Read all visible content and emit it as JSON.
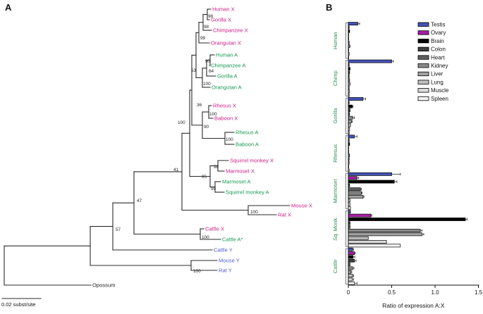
{
  "figure": {
    "panel_a_label": "A",
    "panel_b_label": "B"
  },
  "tree": {
    "scale_bar": {
      "label": "0.02 subst/site"
    },
    "colors": {
      "x": "#cf1d86",
      "a": "#169a50",
      "y": "#4d5ccc",
      "o": "#1a1a1a"
    },
    "root": {
      "x": 6,
      "c": [
        {
          "x": 128,
          "c": [
            {
              "x": 160,
              "bs": "57",
              "lx": 164,
              "ly": 328,
              "c": [
                {
                  "x": 190,
                  "bs": "47",
                  "lx": 194,
                  "ly": 287,
                  "c": [
                    {
                      "x": 258,
                      "bs": "41",
                      "lx": 246,
                      "ly": 243,
                      "c": [
                        {
                          "x": 269,
                          "bs": "100",
                          "lx": 252,
                          "ly": 176,
                          "c": [
                            {
                              "x": 272,
                              "bs": "36",
                              "lx": 279,
                              "ly": 151,
                              "c": [
                                {
                                  "x": 278,
                                  "bs": "53",
                                  "lx": 271,
                                  "ly": 102,
                                  "c": [
                                    {
                                      "x": 282,
                                      "bs": "99",
                                      "lx": 284,
                                      "ly": 56,
                                      "c": [
                                        {
                                          "x": 288,
                                          "bs": "98",
                                          "lx": 289,
                                          "ly": 40,
                                          "c": [
                                            {
                                              "x": 294,
                                              "bs": "98",
                                              "lx": 295,
                                              "ly": 25,
                                              "c": [
                                                {
                                                  "leaf": "Human X",
                                                  "cls": "x",
                                                  "y": 13,
                                                  "tx": 299
                                                },
                                                {
                                                  "leaf": "Gorilla X",
                                                  "cls": "x",
                                                  "y": 28,
                                                  "tx": 297
                                                }
                                              ]
                                            },
                                            {
                                              "leaf": "Chimpanzee X",
                                              "cls": "x",
                                              "y": 43,
                                              "tx": 300
                                            }
                                          ]
                                        },
                                        {
                                          "leaf": "Orangutan X",
                                          "cls": "x",
                                          "y": 61,
                                          "tx": 297
                                        }
                                      ]
                                    },
                                    {
                                      "x": 287,
                                      "bs": "100",
                                      "lx": 288,
                                      "ly": 121,
                                      "c": [
                                        {
                                          "x": 293,
                                          "bs": "64",
                                          "lx": 296,
                                          "ly": 103,
                                          "c": [
                                            {
                                              "x": 298,
                                              "bs": "90",
                                              "lx": 291,
                                              "ly": 89,
                                              "c": [
                                                {
                                                  "leaf": "Human A",
                                                  "cls": "a",
                                                  "y": 78,
                                                  "tx": 304
                                                },
                                                {
                                                  "leaf": "Chimpanzee A",
                                                  "cls": "a",
                                                  "y": 93,
                                                  "tx": 297
                                                }
                                              ]
                                            },
                                            {
                                              "leaf": "Gorilla A",
                                              "cls": "a",
                                              "y": 108,
                                              "tx": 306
                                            }
                                          ]
                                        },
                                        {
                                          "leaf": "Orangutan A",
                                          "cls": "a",
                                          "y": 124,
                                          "tx": 298
                                        }
                                      ]
                                    }
                                  ]
                                },
                                {
                                  "x": 287,
                                  "bs": "90",
                                  "lx": 289,
                                  "ly": 182,
                                  "c": [
                                    {
                                      "x": 296,
                                      "bs": "100",
                                      "lx": 297,
                                      "ly": 164,
                                      "c": [
                                        {
                                          "leaf": "Rhesus X",
                                          "cls": "x",
                                          "y": 150,
                                          "tx": 300
                                        },
                                        {
                                          "leaf": "Baboon X",
                                          "cls": "x",
                                          "y": 168,
                                          "tx": 302
                                        }
                                      ]
                                    },
                                    {
                                      "x": 319,
                                      "bs": "100",
                                      "lx": 320,
                                      "ly": 200,
                                      "c": [
                                        {
                                          "leaf": "Rhesus A",
                                          "cls": "a",
                                          "y": 188,
                                          "tx": 332
                                        },
                                        {
                                          "leaf": "Baboon A",
                                          "cls": "a",
                                          "y": 205,
                                          "tx": 332
                                        }
                                      ]
                                    }
                                  ]
                                }
                              ]
                            },
                            {
                              "x": 298,
                              "bs": "95",
                              "lx": 286,
                              "ly": 253,
                              "c": [
                                {
                                  "x": 309,
                                  "bs": "98",
                                  "lx": 303,
                                  "ly": 239,
                                  "c": [
                                    {
                                      "leaf": "Squirrel monkey X",
                                      "cls": "x",
                                      "y": 228,
                                      "tx": 324
                                    },
                                    {
                                      "leaf": "Marmoset X",
                                      "cls": "x",
                                      "y": 243,
                                      "tx": 318
                                    }
                                  ]
                                },
                                {
                                  "x": 305,
                                  "bs": "99",
                                  "lx": 299,
                                  "ly": 270,
                                  "c": [
                                    {
                                      "leaf": "Marmoset A",
                                      "cls": "a",
                                      "y": 258,
                                      "tx": 313
                                    },
                                    {
                                      "leaf": "Squirrel monkey A",
                                      "cls": "a",
                                      "y": 273,
                                      "tx": 318
                                    }
                                  ]
                                }
                              ]
                            }
                          ]
                        },
                        {
                          "x": 352,
                          "bs": "100",
                          "lx": 355,
                          "ly": 303,
                          "c": [
                            {
                              "leaf": "Mouse X",
                              "cls": "x",
                              "y": 292,
                              "tx": 411
                            },
                            {
                              "leaf": "Rat X",
                              "cls": "x",
                              "y": 305,
                              "tx": 392
                            }
                          ]
                        }
                      ]
                    },
                    {
                      "x": 284,
                      "bs": "100",
                      "lx": 286,
                      "ly": 339,
                      "c": [
                        {
                          "leaf": "Cattle X",
                          "cls": "x",
                          "y": 325,
                          "tx": 289
                        },
                        {
                          "leaf": "Cattle A*",
                          "cls": "a",
                          "y": 340,
                          "tx": 313
                        }
                      ]
                    }
                  ]
                },
                {
                  "leaf": "Cattle Y",
                  "cls": "y",
                  "y": 355,
                  "tx": 301
                }
              ]
            },
            {
              "x": 271,
              "bs": "100",
              "lx": 274,
              "ly": 387,
              "c": [
                {
                  "leaf": "Mouse Y",
                  "cls": "y",
                  "y": 370,
                  "tx": 308
                },
                {
                  "leaf": "Rat Y",
                  "cls": "y",
                  "y": 384,
                  "tx": 308
                }
              ]
            }
          ]
        },
        {
          "leaf": "Opossum",
          "cls": "o",
          "y": 405,
          "tx": 129
        }
      ]
    }
  },
  "chart_data": {
    "type": "bar",
    "orientation": "horizontal",
    "xlabel": "Ratio of expression A:X",
    "xlim": [
      0,
      1.5
    ],
    "xticks": [
      "0",
      "0.5",
      "1.0",
      "1.5"
    ],
    "xtick_values": [
      0,
      0.5,
      1.0,
      1.5
    ],
    "legend_position": "top-right",
    "grid": false,
    "species_label_color": "#2e9055",
    "tissues": [
      "Testis",
      "Ovary",
      "Brain",
      "Colon",
      "Heart",
      "Kidney",
      "Liver",
      "Lung",
      "Muscle",
      "Spleen"
    ],
    "tissue_colors": [
      "#4353b4",
      "#a81ca8",
      "#000000",
      "#3d3d3d",
      "#5e5e5e",
      "#8a8a8a",
      "#a3a3a3",
      "#bfbfbf",
      "#dadada",
      "#f4f4f4"
    ],
    "series": [
      {
        "name": "Human",
        "values": [
          0.11,
          0.01,
          0.015,
          0.005,
          0.005,
          0.01,
          0.015,
          0.005,
          0.01,
          0.005
        ],
        "errors": [
          0.02,
          0,
          0,
          0,
          0,
          0,
          0.005,
          0,
          0,
          0
        ]
      },
      {
        "name": "Chimp",
        "values": [
          0.5,
          0.01,
          0.02,
          0.015,
          0.01,
          0.015,
          0.02,
          0.01,
          0.015,
          0.01
        ],
        "errors": [
          0.02,
          0,
          0,
          0,
          0,
          0,
          0,
          0,
          0,
          0
        ]
      },
      {
        "name": "Gorilla",
        "values": [
          0.17,
          0.01,
          0.045,
          0.02,
          0.015,
          0.05,
          0.035,
          0.025,
          0.015,
          0.01
        ],
        "errors": [
          0.03,
          0,
          0.01,
          0,
          0,
          0.02,
          0.01,
          0,
          0,
          0
        ]
      },
      {
        "name": "Rhesus",
        "values": [
          0.07,
          0.01,
          0.015,
          0.005,
          0.005,
          0.015,
          0.01,
          0.01,
          0.005,
          0.01
        ],
        "errors": [
          0.03,
          0,
          0,
          0,
          0,
          0,
          0,
          0,
          0,
          0
        ]
      },
      {
        "name": "Marmoset",
        "values": [
          0.5,
          0.1,
          0.53,
          0.015,
          0.14,
          0.15,
          0.17,
          0.02,
          0.02,
          0.025
        ],
        "errors": [
          0.1,
          0.02,
          0.03,
          0,
          0.01,
          0.01,
          0.01,
          0,
          0,
          0
        ]
      },
      {
        "name": "Sq. Monk.",
        "values": [
          0.025,
          0.26,
          1.35,
          0.02,
          0.02,
          0.83,
          0.85,
          0.23,
          0.44,
          0.6
        ],
        "errors": [
          0,
          0.01,
          0.02,
          0,
          0,
          0.02,
          0.02,
          0,
          0,
          0
        ]
      },
      {
        "name": "Cattle",
        "values": [
          0.05,
          0.07,
          0.055,
          0.07,
          0.02,
          0.05,
          0.03,
          0.05,
          0.045,
          0.07
        ],
        "errors": [
          0.01,
          0.01,
          0.02,
          0.02,
          0,
          0.015,
          0.01,
          0.01,
          0.015,
          0.03
        ]
      }
    ]
  }
}
